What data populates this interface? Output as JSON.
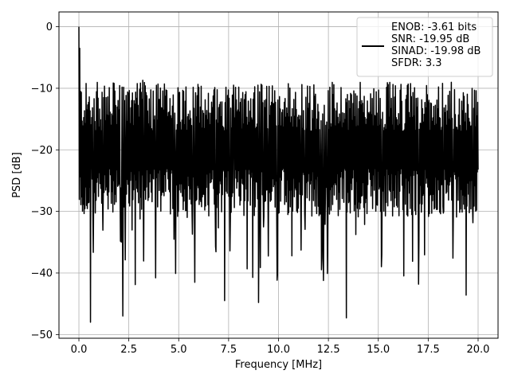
{
  "chart_data": {
    "type": "line",
    "title": "",
    "xlabel": "Frequency [MHz]",
    "ylabel": "PSD [dB]",
    "xlim": [
      -0.999,
      20.999
    ],
    "ylim": [
      -50.6,
      2.4
    ],
    "xticks": [
      0.0,
      2.5,
      5.0,
      7.5,
      10.0,
      12.5,
      15.0,
      17.5,
      20.0
    ],
    "xtick_labels": [
      "0.0",
      "2.5",
      "5.0",
      "7.5",
      "10.0",
      "12.5",
      "15.0",
      "17.5",
      "20.0"
    ],
    "yticks": [
      0,
      -10,
      -20,
      -30,
      -40,
      -50
    ],
    "ytick_labels": [
      "0",
      "−10",
      "−20",
      "−30",
      "−40",
      "−50"
    ],
    "grid": true,
    "legend_position": "top-right",
    "series": [
      {
        "name": "ENOB: -3.61 bits",
        "color": "#000000",
        "x_range": [
          0.0,
          20.0
        ],
        "points": 1000,
        "noise_floor_mean": -20.0,
        "peaks": [
          {
            "x": 0.0,
            "y": 0.0
          },
          {
            "x": 0.04,
            "y": -3.5
          },
          {
            "x": 0.08,
            "y": -10.5
          },
          {
            "x": 0.58,
            "y": -48.0
          },
          {
            "x": 2.2,
            "y": -47.0
          },
          {
            "x": 7.3,
            "y": -44.5
          },
          {
            "x": 9.0,
            "y": -44.8
          },
          {
            "x": 13.4,
            "y": -47.3
          },
          {
            "x": 19.4,
            "y": -43.6
          },
          {
            "x": 7.75,
            "y": -9.5
          },
          {
            "x": 3.2,
            "y": -8.7
          }
        ]
      }
    ],
    "legend_lines": [
      "ENOB: -3.61 bits",
      "SNR: -19.95 dB",
      "SINAD: -19.98 dB",
      "SFDR: 3.3"
    ]
  }
}
